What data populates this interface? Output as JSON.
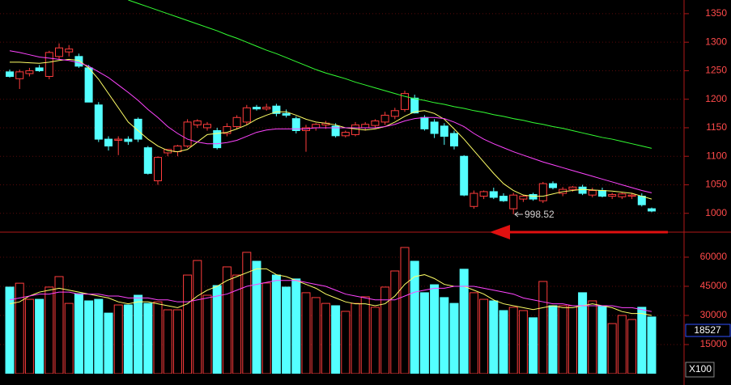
{
  "chart_data": [
    {
      "type": "candlestick",
      "candles": [
        [
          1248,
          1252,
          1238,
          1240
        ],
        [
          1236,
          1252,
          1218,
          1248
        ],
        [
          1245,
          1255,
          1240,
          1250
        ],
        [
          1255,
          1260,
          1248,
          1250
        ],
        [
          1240,
          1285,
          1235,
          1282
        ],
        [
          1275,
          1298,
          1270,
          1290
        ],
        [
          1283,
          1295,
          1275,
          1288
        ],
        [
          1275,
          1280,
          1255,
          1258
        ],
        [
          1255,
          1260,
          1195,
          1195
        ],
        [
          1190,
          1195,
          1125,
          1130
        ],
        [
          1130,
          1135,
          1110,
          1118
        ],
        [
          1128,
          1135,
          1102,
          1130
        ],
        [
          1130,
          1135,
          1120,
          1126
        ],
        [
          1165,
          1168,
          1125,
          1130
        ],
        [
          1115,
          1118,
          1068,
          1070
        ],
        [
          1057,
          1100,
          1050,
          1098
        ],
        [
          1106,
          1112,
          1100,
          1112
        ],
        [
          1108,
          1120,
          1100,
          1118
        ],
        [
          1118,
          1165,
          1115,
          1160
        ],
        [
          1155,
          1165,
          1150,
          1162
        ],
        [
          1150,
          1160,
          1145,
          1156
        ],
        [
          1145,
          1150,
          1112,
          1115
        ],
        [
          1140,
          1158,
          1135,
          1152
        ],
        [
          1152,
          1172,
          1148,
          1168
        ],
        [
          1160,
          1190,
          1155,
          1185
        ],
        [
          1186,
          1190,
          1180,
          1183
        ],
        [
          1183,
          1192,
          1180,
          1186
        ],
        [
          1188,
          1192,
          1170,
          1175
        ],
        [
          1175,
          1182,
          1168,
          1172
        ],
        [
          1166,
          1170,
          1140,
          1145
        ],
        [
          1145,
          1155,
          1108,
          1150
        ],
        [
          1150,
          1158,
          1145,
          1156
        ],
        [
          1155,
          1162,
          1148,
          1158
        ],
        [
          1153,
          1158,
          1133,
          1136
        ],
        [
          1136,
          1145,
          1133,
          1142
        ],
        [
          1138,
          1160,
          1135,
          1155
        ],
        [
          1150,
          1160,
          1145,
          1156
        ],
        [
          1154,
          1165,
          1150,
          1162
        ],
        [
          1160,
          1178,
          1155,
          1172
        ],
        [
          1170,
          1185,
          1165,
          1180
        ],
        [
          1182,
          1215,
          1178,
          1210
        ],
        [
          1202,
          1208,
          1175,
          1176
        ],
        [
          1168,
          1172,
          1145,
          1148
        ],
        [
          1160,
          1165,
          1132,
          1140
        ],
        [
          1153,
          1158,
          1120,
          1135
        ],
        [
          1140,
          1145,
          1112,
          1118
        ],
        [
          1100,
          1102,
          1030,
          1032
        ],
        [
          1012,
          1040,
          1008,
          1035
        ],
        [
          1030,
          1040,
          1025,
          1038
        ],
        [
          1038,
          1045,
          1025,
          1028
        ],
        [
          1030,
          1035,
          1020,
          1022
        ],
        [
          1008,
          1036,
          998.52,
          1032
        ],
        [
          1025,
          1032,
          1020,
          1030
        ],
        [
          1033,
          1036,
          1022,
          1025
        ],
        [
          1022,
          1055,
          1018,
          1052
        ],
        [
          1052,
          1056,
          1042,
          1045
        ],
        [
          1035,
          1046,
          1030,
          1042
        ],
        [
          1042,
          1048,
          1038,
          1046
        ],
        [
          1046,
          1050,
          1032,
          1035
        ],
        [
          1032,
          1045,
          1028,
          1040
        ],
        [
          1040,
          1045,
          1028,
          1030
        ],
        [
          1030,
          1036,
          1025,
          1033
        ],
        [
          1029,
          1036,
          1025,
          1034
        ],
        [
          1030,
          1036,
          1025,
          1032
        ],
        [
          1030,
          1035,
          1012,
          1015
        ],
        [
          1008,
          1010,
          1002,
          1004
        ]
      ],
      "up_color": "#ff3c3c",
      "down_color": "#54ffff",
      "lines": [
        {
          "color": "#ffff66",
          "values": [
            1265,
            1265,
            1264,
            1263,
            1265,
            1268,
            1270,
            1268,
            1255,
            1235,
            1210,
            1185,
            1160,
            1145,
            1130,
            1118,
            1110,
            1108,
            1112,
            1125,
            1138,
            1140,
            1142,
            1148,
            1155,
            1165,
            1172,
            1178,
            1178,
            1172,
            1165,
            1160,
            1158,
            1155,
            1150,
            1148,
            1146,
            1148,
            1152,
            1160,
            1170,
            1178,
            1180,
            1175,
            1165,
            1148,
            1130,
            1110,
            1090,
            1070,
            1052,
            1040,
            1032,
            1030,
            1030,
            1034,
            1038,
            1040,
            1042,
            1041,
            1040,
            1039,
            1037,
            1035,
            1030,
            1025
          ]
        },
        {
          "color": "#ff44ff",
          "values": [
            1285,
            1282,
            1278,
            1274,
            1272,
            1270,
            1268,
            1264,
            1258,
            1248,
            1238,
            1225,
            1212,
            1198,
            1182,
            1168,
            1152,
            1140,
            1130,
            1125,
            1122,
            1122,
            1124,
            1128,
            1135,
            1142,
            1146,
            1148,
            1148,
            1148,
            1148,
            1150,
            1150,
            1150,
            1150,
            1150,
            1150,
            1150,
            1152,
            1156,
            1162,
            1166,
            1168,
            1168,
            1166,
            1160,
            1152,
            1140,
            1130,
            1122,
            1115,
            1108,
            1102,
            1096,
            1090,
            1085,
            1080,
            1075,
            1070,
            1065,
            1060,
            1055,
            1050,
            1045,
            1040,
            1036
          ]
        },
        {
          "color": "#33ff33",
          "values": [
            null,
            null,
            null,
            null,
            null,
            null,
            null,
            null,
            null,
            null,
            null,
            null,
            1374,
            1368,
            1362,
            1356,
            1350,
            1344,
            1338,
            1332,
            1326,
            1320,
            1313,
            1307,
            1300,
            1293,
            1286,
            1280,
            1273,
            1266,
            1259,
            1252,
            1246,
            1241,
            1236,
            1230,
            1225,
            1220,
            1215,
            1210,
            1205,
            1201,
            1198,
            1194,
            1191,
            1187,
            1184,
            1180,
            1177,
            1173,
            1170,
            1166,
            1163,
            1159,
            1156,
            1152,
            1149,
            1145,
            1141,
            1137,
            1133,
            1130,
            1126,
            1122,
            1118,
            1114
          ]
        }
      ],
      "annotation": 998.52,
      "ylim": [
        967,
        1374
      ],
      "yticks": [
        1000,
        1050,
        1100,
        1150,
        1200,
        1250,
        1300,
        1350
      ],
      "grid": true
    },
    {
      "type": "bar",
      "values": [
        44600,
        46600,
        38300,
        38300,
        44600,
        50000,
        36200,
        41200,
        37500,
        38300,
        31200,
        35400,
        35400,
        40400,
        36200,
        37000,
        32900,
        32900,
        50800,
        58300,
        40400,
        45400,
        55000,
        50800,
        62500,
        57900,
        46700,
        50800,
        44600,
        48800,
        41700,
        39200,
        36200,
        35000,
        32100,
        36200,
        39600,
        34200,
        44600,
        52900,
        65000,
        57900,
        41700,
        45800,
        39200,
        36200,
        53800,
        41700,
        38300,
        37500,
        32500,
        34200,
        32500,
        28800,
        47500,
        35000,
        35000,
        35000,
        41700,
        37500,
        35000,
        25800,
        30000,
        27900,
        34200,
        29200
      ],
      "lines": [
        {
          "color": "#ffff66",
          "values": [
            36000,
            37000,
            40000,
            42000,
            43000,
            44000,
            43000,
            42000,
            41000,
            40000,
            39000,
            37000,
            36000,
            37000,
            37000,
            36000,
            35000,
            34000,
            36000,
            40000,
            43000,
            45000,
            48000,
            50000,
            52000,
            54000,
            54000,
            51000,
            50000,
            48000,
            46000,
            44000,
            41000,
            39000,
            37000,
            36000,
            36000,
            35000,
            36000,
            40000,
            46000,
            50000,
            51000,
            49000,
            46000,
            45000,
            45000,
            43000,
            41000,
            38000,
            36000,
            35000,
            34000,
            33000,
            34000,
            35000,
            34000,
            34000,
            35000,
            36000,
            35000,
            34000,
            32000,
            31000,
            31000,
            30000
          ]
        },
        {
          "color": "#ff44ff",
          "values": [
            38000,
            39000,
            40000,
            41000,
            41000,
            42000,
            42000,
            41000,
            41000,
            41000,
            40000,
            40000,
            39000,
            39000,
            39000,
            38000,
            38000,
            37000,
            37000,
            38000,
            39000,
            40000,
            41000,
            43000,
            45000,
            46000,
            47000,
            48000,
            48000,
            48000,
            47000,
            46000,
            45000,
            43000,
            41000,
            40000,
            39000,
            38000,
            38000,
            38000,
            40000,
            42000,
            43000,
            44000,
            44000,
            45000,
            45000,
            45000,
            44000,
            43000,
            42000,
            41000,
            39000,
            38000,
            37000,
            36000,
            36000,
            35000,
            35000,
            35000,
            35000,
            35000,
            34000,
            34000,
            33000,
            32000
          ]
        }
      ],
      "current_value": 18527,
      "unit_label": "X100",
      "ylim": [
        0,
        72900
      ],
      "yticks": [
        15000,
        30000,
        45000,
        60000
      ],
      "grid": true
    }
  ]
}
